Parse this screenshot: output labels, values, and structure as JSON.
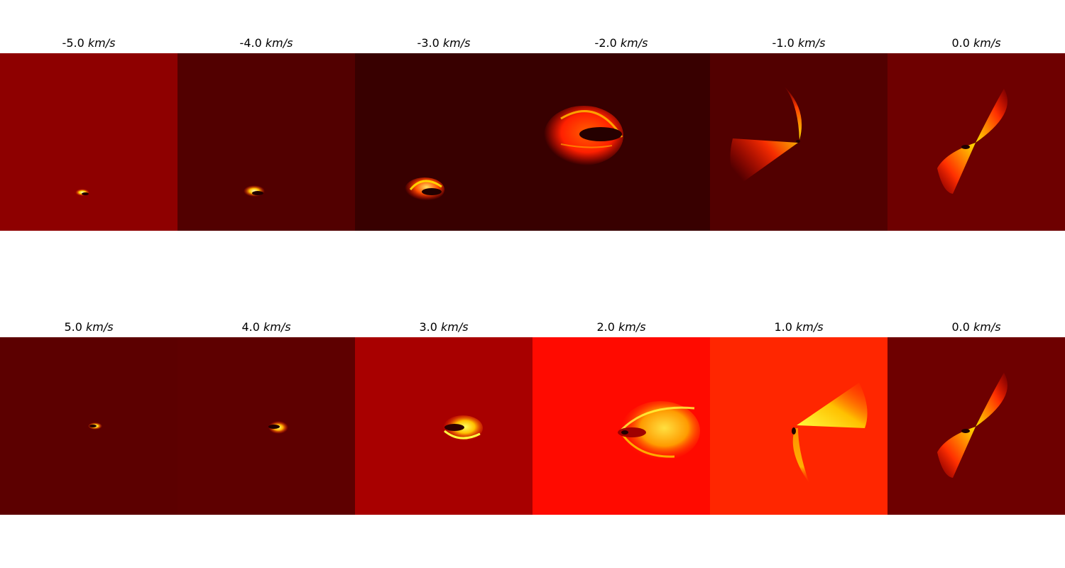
{
  "rows": [
    {
      "panels": [
        {
          "velocity": "-5.0",
          "unit": "km/s",
          "background": "#8e0000"
        },
        {
          "velocity": "-4.0",
          "unit": "km/s",
          "background": "#520000"
        },
        {
          "velocity": "-3.0",
          "unit": "km/s",
          "background": "#380000"
        },
        {
          "velocity": "-2.0",
          "unit": "km/s",
          "background": "#380000"
        },
        {
          "velocity": "-1.0",
          "unit": "km/s",
          "background": "#520000"
        },
        {
          "velocity": "0.0",
          "unit": "km/s",
          "background": "#6e0000"
        }
      ]
    },
    {
      "panels": [
        {
          "velocity": "5.0",
          "unit": "km/s",
          "background": "#5c0000"
        },
        {
          "velocity": "4.0",
          "unit": "km/s",
          "background": "#5e0000"
        },
        {
          "velocity": "3.0",
          "unit": "km/s",
          "background": "#a80000"
        },
        {
          "velocity": "2.0",
          "unit": "km/s",
          "background": "#ff0a00"
        },
        {
          "velocity": "1.0",
          "unit": "km/s",
          "background": "#ff2600"
        },
        {
          "velocity": "0.0",
          "unit": "km/s",
          "background": "#6e0000"
        }
      ]
    }
  ],
  "colors": {
    "colormap": "hot",
    "page_background": "#ffffff",
    "text": "#000000"
  }
}
